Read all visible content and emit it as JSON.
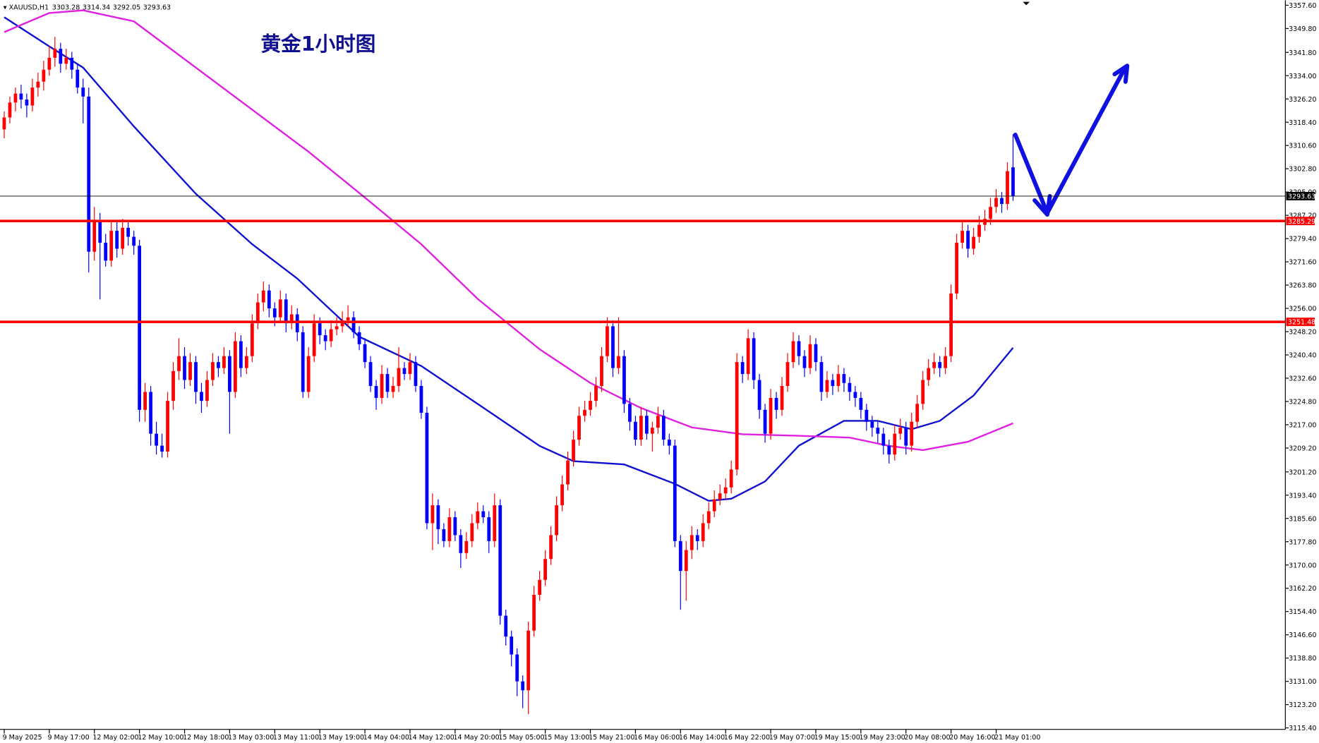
{
  "chart_data": {
    "type": "candlestick",
    "symbol": "XAUUSD,H1",
    "title": "黄金1小时图",
    "up_color": "#ff0000",
    "down_color": "#0000ff",
    "ylim": [
      3114.9,
      3359.3
    ],
    "yticks": [
      {
        "value": 3357.6,
        "label": "3357.60"
      },
      {
        "value": 3349.8,
        "label": "3349.80"
      },
      {
        "value": 3341.8,
        "label": "3341.80"
      },
      {
        "value": 3334,
        "label": "3334.00"
      },
      {
        "value": 3326.2,
        "label": "3326.20"
      },
      {
        "value": 3318.4,
        "label": "3318.40"
      },
      {
        "value": 3310.6,
        "label": "3310.60"
      },
      {
        "value": 3302.8,
        "label": "3302.80"
      },
      {
        "value": 3295,
        "label": "3295.00"
      },
      {
        "value": 3287.2,
        "label": "3287.20"
      },
      {
        "value": 3279.4,
        "label": "3279.40"
      },
      {
        "value": 3271.6,
        "label": "3271.60"
      },
      {
        "value": 3263.8,
        "label": "3263.80"
      },
      {
        "value": 3256,
        "label": "3256.00"
      },
      {
        "value": 3248.2,
        "label": "3248.20"
      },
      {
        "value": 3240.4,
        "label": "3240.40"
      },
      {
        "value": 3232.6,
        "label": "3232.60"
      },
      {
        "value": 3224.8,
        "label": "3224.80"
      },
      {
        "value": 3217,
        "label": "3217.00"
      },
      {
        "value": 3209.2,
        "label": "3209.20"
      },
      {
        "value": 3201.2,
        "label": "3201.20"
      },
      {
        "value": 3193.4,
        "label": "3193.40"
      },
      {
        "value": 3185.6,
        "label": "3185.60"
      },
      {
        "value": 3177.8,
        "label": "3177.80"
      },
      {
        "value": 3170,
        "label": "3170.00"
      },
      {
        "value": 3162.2,
        "label": "3162.20"
      },
      {
        "value": 3154.4,
        "label": "3154.40"
      },
      {
        "value": 3146.6,
        "label": "3146.60"
      },
      {
        "value": 3138.8,
        "label": "3138.80"
      },
      {
        "value": 3131,
        "label": "3131.00"
      },
      {
        "value": 3123.2,
        "label": "3123.20"
      },
      {
        "value": 3115.4,
        "label": "3115.40"
      }
    ],
    "xticks": [
      {
        "value": 0,
        "label": "9 May 2025"
      },
      {
        "value": 8,
        "label": "9 May 17:00"
      },
      {
        "value": 16,
        "label": "12 May 02:00"
      },
      {
        "value": 24,
        "label": "12 May 10:00"
      },
      {
        "value": 32,
        "label": "12 May 18:00"
      },
      {
        "value": 40,
        "label": "13 May 03:00"
      },
      {
        "value": 48,
        "label": "13 May 11:00"
      },
      {
        "value": 56,
        "label": "13 May 19:00"
      },
      {
        "value": 64,
        "label": "14 May 04:00"
      },
      {
        "value": 72,
        "label": "14 May 12:00"
      },
      {
        "value": 80,
        "label": "14 May 20:00"
      },
      {
        "value": 88,
        "label": "15 May 05:00"
      },
      {
        "value": 96,
        "label": "15 May 13:00"
      },
      {
        "value": 104,
        "label": "15 May 21:00"
      },
      {
        "value": 112,
        "label": "16 May 06:00"
      },
      {
        "value": 120,
        "label": "16 May 14:00"
      },
      {
        "value": 128,
        "label": "16 May 22:00"
      },
      {
        "value": 136,
        "label": "19 May 07:00"
      },
      {
        "value": 144,
        "label": "19 May 15:00"
      },
      {
        "value": 152,
        "label": "19 May 23:00"
      },
      {
        "value": 160,
        "label": "20 May 08:00"
      },
      {
        "value": 168,
        "label": "20 May 16:00"
      },
      {
        "value": 176,
        "label": "21 May 01:00"
      }
    ],
    "levels": [
      {
        "value": 3285.29,
        "color": "#ff0000"
      },
      {
        "value": 3251.48,
        "color": "#ff0000"
      }
    ],
    "lines": [
      {
        "color": "#1010d0",
        "x": [
          0,
          8,
          14,
          23,
          34,
          44,
          52,
          63,
          74,
          84,
          95,
          101,
          110,
          119,
          125,
          129,
          135,
          141,
          149,
          155,
          161,
          166,
          172,
          179
        ],
        "values": [
          3353.6,
          3343.8,
          3336.7,
          3317,
          3294.4,
          3277.5,
          3266,
          3246.5,
          3236.7,
          3224,
          3209.9,
          3204.8,
          3203.7,
          3197.2,
          3191.5,
          3192.2,
          3198,
          3210,
          3218.3,
          3218.3,
          3215.5,
          3218.3,
          3226.8,
          3242.8
        ]
      },
      {
        "color": "#e020e0",
        "x": [
          0,
          8,
          14,
          23,
          34,
          44,
          54,
          65,
          74,
          84,
          95,
          104,
          113,
          122,
          131,
          141,
          150,
          157,
          163,
          171,
          179
        ],
        "values": [
          3348.6,
          3355,
          3355.9,
          3352.2,
          3336.7,
          3322.6,
          3308.5,
          3291.6,
          3277.5,
          3259.2,
          3242.3,
          3231,
          3222.6,
          3216.1,
          3213.8,
          3213.3,
          3212.7,
          3209.9,
          3208.5,
          3211.3,
          3217.5
        ]
      }
    ],
    "candles": [
      [
        3316,
        3322,
        3313,
        3320
      ],
      [
        3320,
        3327,
        3318,
        3325
      ],
      [
        3325,
        3330,
        3322,
        3328
      ],
      [
        3328,
        3331,
        3323,
        3326
      ],
      [
        3326,
        3328,
        3320,
        3324
      ],
      [
        3324,
        3333,
        3322,
        3330
      ],
      [
        3330,
        3335,
        3327,
        3332
      ],
      [
        3332,
        3339,
        3329,
        3336
      ],
      [
        3336,
        3344,
        3334,
        3340
      ],
      [
        3340,
        3347,
        3337,
        3343
      ],
      [
        3343,
        3345,
        3335,
        3338
      ],
      [
        3338,
        3343,
        3336,
        3340
      ],
      [
        3340,
        3342,
        3333,
        3336
      ],
      [
        3336,
        3338,
        3328,
        3330
      ],
      [
        3330,
        3333,
        3318,
        3327
      ],
      [
        3327,
        3330,
        3268,
        3275
      ],
      [
        3275,
        3290,
        3272,
        3285
      ],
      [
        3285,
        3288,
        3259,
        3278
      ],
      [
        3278,
        3281,
        3270,
        3272
      ],
      [
        3272,
        3285,
        3270,
        3282
      ],
      [
        3282,
        3285,
        3273,
        3276
      ],
      [
        3276,
        3286,
        3274,
        3283
      ],
      [
        3283,
        3285,
        3277,
        3280
      ],
      [
        3280,
        3282,
        3274,
        3277
      ],
      [
        3277,
        3279,
        3218,
        3222
      ],
      [
        3222,
        3231,
        3218,
        3228
      ],
      [
        3228,
        3230,
        3210,
        3214
      ],
      [
        3214,
        3218,
        3207,
        3210
      ],
      [
        3210,
        3214,
        3206,
        3208
      ],
      [
        3208,
        3228,
        3206,
        3225
      ],
      [
        3225,
        3238,
        3222,
        3235
      ],
      [
        3235,
        3246,
        3232,
        3240
      ],
      [
        3240,
        3243,
        3229,
        3232
      ],
      [
        3232,
        3241,
        3230,
        3238
      ],
      [
        3238,
        3240,
        3224,
        3228
      ],
      [
        3228,
        3231,
        3221,
        3225
      ],
      [
        3225,
        3235,
        3223,
        3232
      ],
      [
        3232,
        3241,
        3230,
        3238
      ],
      [
        3238,
        3240,
        3233,
        3236
      ],
      [
        3236,
        3243,
        3234,
        3240
      ],
      [
        3240,
        3242,
        3214,
        3228
      ],
      [
        3228,
        3248,
        3226,
        3245
      ],
      [
        3245,
        3247,
        3233,
        3236
      ],
      [
        3236,
        3243,
        3234,
        3240
      ],
      [
        3240,
        3254,
        3238,
        3251
      ],
      [
        3251,
        3261,
        3249,
        3258
      ],
      [
        3258,
        3265,
        3255,
        3262
      ],
      [
        3262,
        3264,
        3253,
        3256
      ],
      [
        3256,
        3258,
        3250,
        3253
      ],
      [
        3253,
        3262,
        3251,
        3259
      ],
      [
        3259,
        3261,
        3248,
        3251
      ],
      [
        3251,
        3257,
        3249,
        3254
      ],
      [
        3254,
        3256,
        3245,
        3248
      ],
      [
        3248,
        3250,
        3226,
        3228
      ],
      [
        3228,
        3243,
        3226,
        3240
      ],
      [
        3240,
        3254,
        3238,
        3251
      ],
      [
        3251,
        3253,
        3244,
        3247
      ],
      [
        3247,
        3249,
        3242,
        3245
      ],
      [
        3245,
        3252,
        3243,
        3249
      ],
      [
        3249,
        3253,
        3247,
        3250
      ],
      [
        3250,
        3255,
        3248,
        3252
      ],
      [
        3252,
        3257,
        3250,
        3253
      ],
      [
        3253,
        3255,
        3246,
        3248
      ],
      [
        3248,
        3250,
        3242,
        3244
      ],
      [
        3244,
        3246,
        3236,
        3238
      ],
      [
        3238,
        3240,
        3228,
        3230
      ],
      [
        3230,
        3232,
        3222,
        3226
      ],
      [
        3226,
        3237,
        3224,
        3234
      ],
      [
        3234,
        3236,
        3226,
        3228
      ],
      [
        3228,
        3233,
        3226,
        3230
      ],
      [
        3230,
        3243,
        3228,
        3236
      ],
      [
        3236,
        3238,
        3232,
        3234
      ],
      [
        3234,
        3241,
        3232,
        3238
      ],
      [
        3238,
        3240,
        3228,
        3230
      ],
      [
        3230,
        3232,
        3219,
        3221
      ],
      [
        3221,
        3223,
        3182,
        3184
      ],
      [
        3184,
        3194,
        3175,
        3190
      ],
      [
        3190,
        3192,
        3177,
        3182
      ],
      [
        3182,
        3184,
        3176,
        3178
      ],
      [
        3178,
        3189,
        3176,
        3186
      ],
      [
        3186,
        3188,
        3178,
        3180
      ],
      [
        3180,
        3182,
        3169,
        3174
      ],
      [
        3174,
        3181,
        3172,
        3178
      ],
      [
        3178,
        3187,
        3176,
        3184
      ],
      [
        3184,
        3191,
        3182,
        3188
      ],
      [
        3188,
        3190,
        3184,
        3186
      ],
      [
        3186,
        3188,
        3174,
        3178
      ],
      [
        3178,
        3194,
        3176,
        3190
      ],
      [
        3190,
        3192,
        3150,
        3153
      ],
      [
        3153,
        3155,
        3143,
        3146
      ],
      [
        3146,
        3148,
        3136,
        3140
      ],
      [
        3140,
        3142,
        3126,
        3131
      ],
      [
        3131,
        3133,
        3122,
        3128
      ],
      [
        3128,
        3151,
        3120,
        3148
      ],
      [
        3148,
        3163,
        3146,
        3160
      ],
      [
        3160,
        3168,
        3158,
        3165
      ],
      [
        3165,
        3175,
        3163,
        3172
      ],
      [
        3172,
        3183,
        3170,
        3180
      ],
      [
        3180,
        3193,
        3178,
        3190
      ],
      [
        3190,
        3200,
        3188,
        3197
      ],
      [
        3197,
        3208,
        3195,
        3205
      ],
      [
        3205,
        3215,
        3203,
        3212
      ],
      [
        3212,
        3223,
        3210,
        3220
      ],
      [
        3220,
        3225,
        3218,
        3222
      ],
      [
        3222,
        3228,
        3220,
        3225
      ],
      [
        3225,
        3233,
        3223,
        3230
      ],
      [
        3230,
        3243,
        3228,
        3240
      ],
      [
        3240,
        3253,
        3238,
        3250
      ],
      [
        3250,
        3252,
        3233,
        3236
      ],
      [
        3236,
        3253,
        3234,
        3240
      ],
      [
        3240,
        3242,
        3221,
        3224
      ],
      [
        3224,
        3226,
        3215,
        3218
      ],
      [
        3218,
        3220,
        3210,
        3212
      ],
      [
        3212,
        3223,
        3210,
        3220
      ],
      [
        3220,
        3222,
        3212,
        3214
      ],
      [
        3214,
        3218,
        3208,
        3216
      ],
      [
        3216,
        3223,
        3214,
        3220
      ],
      [
        3220,
        3222,
        3210,
        3212
      ],
      [
        3212,
        3214,
        3207,
        3210
      ],
      [
        3210,
        3212,
        3176,
        3178
      ],
      [
        3178,
        3180,
        3155,
        3168
      ],
      [
        3168,
        3178,
        3158,
        3175
      ],
      [
        3175,
        3183,
        3172,
        3180
      ],
      [
        3180,
        3182,
        3175,
        3178
      ],
      [
        3178,
        3187,
        3176,
        3184
      ],
      [
        3184,
        3191,
        3182,
        3188
      ],
      [
        3188,
        3195,
        3186,
        3192
      ],
      [
        3192,
        3197,
        3190,
        3194
      ],
      [
        3194,
        3199,
        3192,
        3196
      ],
      [
        3196,
        3205,
        3194,
        3202
      ],
      [
        3202,
        3241,
        3200,
        3238
      ],
      [
        3238,
        3240,
        3231,
        3234
      ],
      [
        3234,
        3249,
        3232,
        3246
      ],
      [
        3246,
        3248,
        3229,
        3232
      ],
      [
        3232,
        3234,
        3219,
        3222
      ],
      [
        3222,
        3224,
        3211,
        3214
      ],
      [
        3214,
        3229,
        3212,
        3226
      ],
      [
        3226,
        3228,
        3219,
        3222
      ],
      [
        3222,
        3233,
        3220,
        3230
      ],
      [
        3230,
        3241,
        3228,
        3238
      ],
      [
        3238,
        3248,
        3236,
        3245
      ],
      [
        3245,
        3247,
        3237,
        3240
      ],
      [
        3240,
        3242,
        3233,
        3236
      ],
      [
        3236,
        3247,
        3234,
        3244
      ],
      [
        3244,
        3246,
        3235,
        3238
      ],
      [
        3238,
        3240,
        3225,
        3228
      ],
      [
        3228,
        3235,
        3226,
        3232
      ],
      [
        3232,
        3234,
        3227,
        3230
      ],
      [
        3230,
        3237,
        3228,
        3234
      ],
      [
        3234,
        3236,
        3228,
        3231
      ],
      [
        3231,
        3233,
        3225,
        3228
      ],
      [
        3228,
        3230,
        3223,
        3226
      ],
      [
        3226,
        3228,
        3219,
        3222
      ],
      [
        3222,
        3224,
        3215,
        3218
      ],
      [
        3218,
        3220,
        3213,
        3216
      ],
      [
        3216,
        3218,
        3211,
        3214
      ],
      [
        3214,
        3216,
        3207,
        3210
      ],
      [
        3210,
        3212,
        3204,
        3207
      ],
      [
        3207,
        3217,
        3205,
        3214
      ],
      [
        3214,
        3219,
        3212,
        3216
      ],
      [
        3216,
        3218,
        3207,
        3210
      ],
      [
        3210,
        3221,
        3208,
        3218
      ],
      [
        3218,
        3227,
        3216,
        3224
      ],
      [
        3224,
        3235,
        3222,
        3232
      ],
      [
        3232,
        3239,
        3230,
        3236
      ],
      [
        3236,
        3241,
        3234,
        3238
      ],
      [
        3238,
        3240,
        3233,
        3236
      ],
      [
        3236,
        3243,
        3234,
        3240
      ],
      [
        3240,
        3264,
        3238,
        3261
      ],
      [
        3261,
        3281,
        3259,
        3278
      ],
      [
        3278,
        3285,
        3276,
        3282
      ],
      [
        3282,
        3284,
        3273,
        3276
      ],
      [
        3276,
        3283,
        3274,
        3280
      ],
      [
        3280,
        3287,
        3278,
        3284
      ],
      [
        3284,
        3289,
        3282,
        3286
      ],
      [
        3286,
        3293,
        3284,
        3290
      ],
      [
        3290,
        3296,
        3288,
        3293
      ],
      [
        3293,
        3295,
        3288,
        3291
      ],
      [
        3291,
        3305,
        3289,
        3302
      ],
      [
        3303.28,
        3314.34,
        3292.05,
        3293.63
      ]
    ]
  }
}
